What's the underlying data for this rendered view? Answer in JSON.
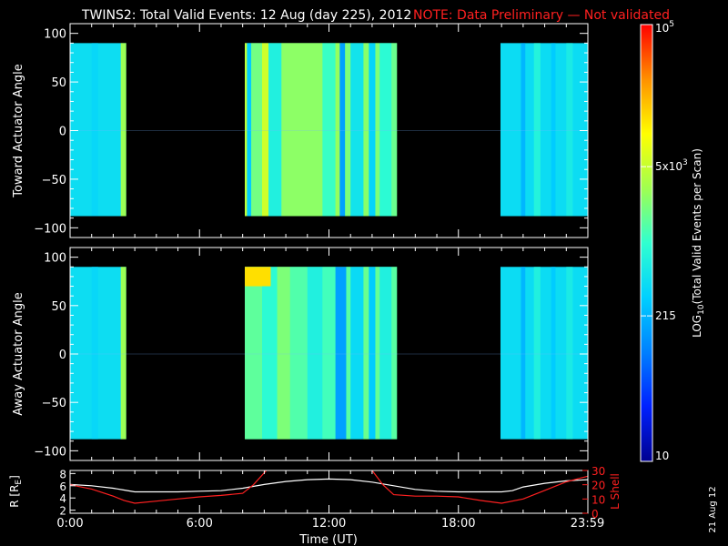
{
  "title": {
    "main": "TWINS2: Total Valid Events: 12 Aug (day 225), 2012",
    "note": "NOTE: Data Preliminary — Not validated"
  },
  "footer": {
    "date_stamp": "21 Aug 12"
  },
  "colors": {
    "background": "#000000",
    "foreground": "#ffffff",
    "note": "#ff2020",
    "r_line": "#ffffff",
    "lshell_line": "#ff2020"
  },
  "colorbar": {
    "label": "LOG10(Total Valid Events per Scan)",
    "label_parts": {
      "pre": "LOG",
      "sub": "10",
      "post": "(Total Valid Events per Scan)"
    },
    "scale": "log",
    "range": [
      10,
      100000
    ],
    "ticks": [
      {
        "value": 100000,
        "base": "10",
        "sup": "5"
      },
      {
        "value": 5000,
        "base": "5x10",
        "sup": "3"
      },
      {
        "value": 215,
        "base": "215",
        "sup": ""
      },
      {
        "value": 10,
        "base": "10",
        "sup": ""
      }
    ],
    "colormap": [
      "#000090",
      "#0020ff",
      "#0080ff",
      "#00d0ff",
      "#30ffd0",
      "#a0ff50",
      "#ffff00",
      "#ff9000",
      "#ff0000"
    ]
  },
  "x_axis": {
    "label": "Time (UT)",
    "range_hours": [
      0,
      24
    ],
    "tick_labels": [
      {
        "hour": 0,
        "label": "0:00"
      },
      {
        "hour": 6,
        "label": "6:00"
      },
      {
        "hour": 12,
        "label": "12:00"
      },
      {
        "hour": 18,
        "label": "18:00"
      },
      {
        "hour": 23.98,
        "label": "23:59"
      }
    ]
  },
  "chart_data": [
    {
      "type": "heatmap",
      "ylabel": "Toward Actuator Angle",
      "ylim": [
        -110,
        110
      ],
      "yticks": [
        100,
        50,
        0,
        -50,
        -100
      ],
      "data_ylim": [
        -88,
        90
      ],
      "x_unit": "hours UT",
      "z_unit": "total valid events per scan (log scale)",
      "segments": [
        {
          "start": 0.0,
          "end": 2.6,
          "level": 430,
          "stripes": [
            {
              "start": 2.35,
              "end": 2.6,
              "level": 3000
            },
            {
              "start": 1.0,
              "end": 1.3,
              "level": 380
            }
          ]
        },
        {
          "start": 8.1,
          "end": 15.15,
          "level": 1800,
          "stripes": [
            {
              "start": 8.1,
              "end": 8.2,
              "level": 4500
            },
            {
              "start": 8.2,
              "end": 8.4,
              "level": 300
            },
            {
              "start": 8.4,
              "end": 8.9,
              "level": 2000
            },
            {
              "start": 8.9,
              "end": 9.2,
              "level": 5500
            },
            {
              "start": 9.2,
              "end": 9.8,
              "level": 700
            },
            {
              "start": 9.8,
              "end": 11.7,
              "level": 2600
            },
            {
              "start": 11.7,
              "end": 12.3,
              "level": 1100
            },
            {
              "start": 12.3,
              "end": 12.5,
              "level": 2800
            },
            {
              "start": 12.5,
              "end": 12.75,
              "level": 160
            },
            {
              "start": 12.75,
              "end": 13.0,
              "level": 2200
            },
            {
              "start": 13.0,
              "end": 13.6,
              "level": 500
            },
            {
              "start": 13.6,
              "end": 13.85,
              "level": 2500
            },
            {
              "start": 13.85,
              "end": 14.15,
              "level": 350
            },
            {
              "start": 14.15,
              "end": 14.35,
              "level": 2200
            },
            {
              "start": 14.35,
              "end": 14.9,
              "level": 900
            },
            {
              "start": 14.9,
              "end": 15.15,
              "level": 1800
            }
          ]
        },
        {
          "start": 19.95,
          "end": 23.98,
          "level": 420,
          "stripes": [
            {
              "start": 20.9,
              "end": 21.1,
              "level": 220
            },
            {
              "start": 21.5,
              "end": 21.8,
              "level": 750
            },
            {
              "start": 22.3,
              "end": 22.5,
              "level": 300
            },
            {
              "start": 23.0,
              "end": 23.3,
              "level": 600
            }
          ]
        }
      ]
    },
    {
      "type": "heatmap",
      "ylabel": "Away Actuator Angle",
      "ylim": [
        -110,
        110
      ],
      "yticks": [
        100,
        50,
        0,
        -50,
        -100
      ],
      "data_ylim": [
        -88,
        90
      ],
      "x_unit": "hours UT",
      "z_unit": "total valid events per scan (log scale)",
      "segments": [
        {
          "start": 0.0,
          "end": 2.6,
          "level": 430,
          "stripes": [
            {
              "start": 2.35,
              "end": 2.6,
              "level": 3000
            },
            {
              "start": 1.0,
              "end": 1.3,
              "level": 380
            }
          ]
        },
        {
          "start": 8.1,
          "end": 15.15,
          "level": 1400,
          "stripes": [
            {
              "start": 8.1,
              "end": 8.9,
              "level": 1600
            },
            {
              "start": 8.9,
              "end": 9.6,
              "level": 900
            },
            {
              "start": 9.6,
              "end": 10.2,
              "level": 2200
            },
            {
              "start": 10.2,
              "end": 11.0,
              "level": 1400
            },
            {
              "start": 11.0,
              "end": 11.7,
              "level": 700
            },
            {
              "start": 11.7,
              "end": 12.3,
              "level": 1200
            },
            {
              "start": 12.3,
              "end": 12.8,
              "level": 160
            },
            {
              "start": 12.8,
              "end": 13.0,
              "level": 1500
            },
            {
              "start": 13.0,
              "end": 13.6,
              "level": 400
            },
            {
              "start": 13.6,
              "end": 13.85,
              "level": 1800
            },
            {
              "start": 13.85,
              "end": 14.15,
              "level": 300
            },
            {
              "start": 14.15,
              "end": 14.35,
              "level": 1700
            },
            {
              "start": 14.35,
              "end": 14.9,
              "level": 700
            },
            {
              "start": 14.9,
              "end": 15.15,
              "level": 1500
            }
          ]
        },
        {
          "start": 19.95,
          "end": 23.98,
          "level": 420,
          "stripes": [
            {
              "start": 20.9,
              "end": 21.1,
              "level": 220
            },
            {
              "start": 21.5,
              "end": 21.8,
              "level": 700
            },
            {
              "start": 22.3,
              "end": 22.5,
              "level": 300
            },
            {
              "start": 23.0,
              "end": 23.3,
              "level": 600
            }
          ]
        }
      ],
      "hotspot": {
        "start": 8.1,
        "end": 9.3,
        "angle_min": 70,
        "angle_max": 90,
        "level": 14000
      }
    },
    {
      "type": "line",
      "ylabel": "R [RE]",
      "ylabel_parts": {
        "pre": "R [R",
        "sub": "E",
        "post": "]"
      },
      "ylim": [
        1.5,
        8.5
      ],
      "yticks": [
        2,
        4,
        6,
        8
      ],
      "y2label": "L Shell",
      "y2lim": [
        0,
        30
      ],
      "y2ticks": [
        0,
        10,
        20,
        30
      ],
      "x_unit": "hours UT",
      "series": [
        {
          "axis": "left",
          "color": "#ffffff",
          "x": [
            0,
            1,
            2,
            2.5,
            3,
            4,
            5,
            6,
            7,
            8,
            9,
            10,
            11,
            12,
            13,
            14,
            15,
            16,
            17,
            18,
            19,
            20,
            20.5,
            21,
            22,
            23,
            24
          ],
          "y": [
            6.2,
            6.0,
            5.6,
            5.3,
            5.0,
            5.0,
            5.0,
            5.1,
            5.2,
            5.6,
            6.2,
            6.7,
            7.0,
            7.1,
            7.0,
            6.6,
            6.0,
            5.4,
            5.1,
            5.0,
            5.0,
            5.0,
            5.2,
            5.8,
            6.4,
            6.8,
            7.0
          ]
        },
        {
          "axis": "right",
          "color": "#ff2020",
          "segments": [
            {
              "x": [
                0,
                1,
                2,
                2.5,
                3,
                4,
                5,
                6,
                7,
                8,
                8.5,
                9.1
              ],
              "y": [
                20,
                17,
                12,
                9,
                7,
                8.5,
                10,
                11.5,
                12.5,
                14,
                20,
                30
              ]
            },
            {
              "x": [
                14.0,
                14.5,
                15.0,
                16,
                17,
                18,
                19,
                20,
                21,
                22,
                23,
                24
              ],
              "y": [
                30,
                20,
                13,
                12,
                12,
                11.5,
                9,
                7,
                10,
                16,
                22,
                26
              ]
            }
          ]
        }
      ]
    }
  ]
}
